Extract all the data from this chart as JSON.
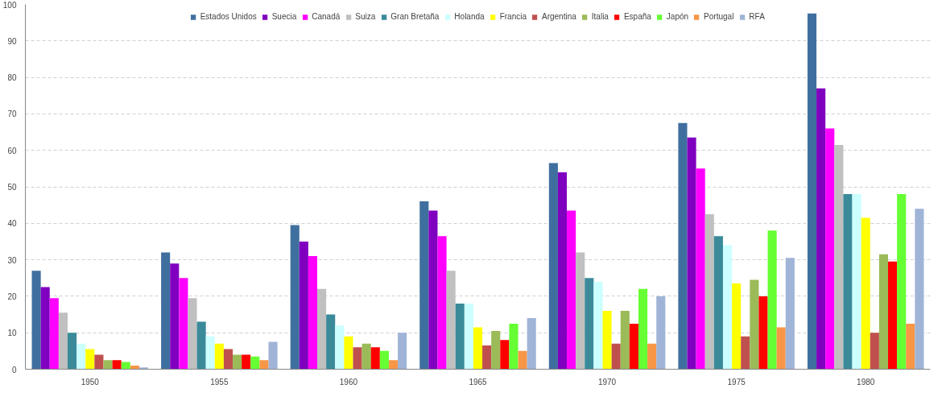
{
  "chart_data": {
    "type": "bar",
    "categories": [
      "1950",
      "1955",
      "1960",
      "1965",
      "1970",
      "1975",
      "1980"
    ],
    "ylim": [
      0,
      100
    ],
    "yticks": [
      0,
      10,
      20,
      30,
      40,
      50,
      60,
      70,
      80,
      90,
      100
    ],
    "grid": "y",
    "legend": "top",
    "series": [
      {
        "name": "Estados Unidos",
        "color": "#3f6f9f",
        "values": [
          27,
          32,
          39.5,
          46,
          56.5,
          67.5,
          97.5
        ]
      },
      {
        "name": "Suecia",
        "color": "#8000c0",
        "values": [
          22.5,
          29,
          35,
          43.5,
          54,
          63.5,
          77
        ]
      },
      {
        "name": "Canadá",
        "color": "#ff00ff",
        "values": [
          19.5,
          25,
          31,
          36.5,
          43.5,
          55,
          66
        ]
      },
      {
        "name": "Suiza",
        "color": "#c0c0c0",
        "values": [
          15.5,
          19.5,
          22,
          27,
          32,
          42.5,
          61.5
        ]
      },
      {
        "name": "Gran Bretaña",
        "color": "#3a8a9a",
        "values": [
          10,
          13,
          15,
          18,
          25,
          36.5,
          48
        ]
      },
      {
        "name": "Holanda",
        "color": "#ccffff",
        "values": [
          7,
          9,
          12,
          18,
          24,
          34,
          48
        ]
      },
      {
        "name": "Francia",
        "color": "#ffff00",
        "values": [
          5.5,
          7,
          9,
          11.5,
          16,
          23.5,
          41.5
        ]
      },
      {
        "name": "Argentina",
        "color": "#c0504d",
        "values": [
          4,
          5.5,
          6,
          6.5,
          7,
          9,
          10
        ]
      },
      {
        "name": "Italia",
        "color": "#9bbb59",
        "values": [
          2.5,
          4,
          7,
          10.5,
          16,
          24.5,
          31.5
        ]
      },
      {
        "name": "España",
        "color": "#ff0000",
        "values": [
          2.5,
          4,
          6,
          8,
          12.5,
          20,
          29.5
        ]
      },
      {
        "name": "Japón",
        "color": "#66ff33",
        "values": [
          2,
          3.5,
          5,
          12.5,
          22,
          38,
          48
        ]
      },
      {
        "name": "Portugal",
        "color": "#f79646",
        "values": [
          1,
          2.5,
          2.5,
          5,
          7,
          11.5,
          12.5
        ]
      },
      {
        "name": "RFA",
        "color": "#a0b4d8",
        "values": [
          0.5,
          7.5,
          10,
          14,
          20,
          30.5,
          44
        ]
      }
    ]
  }
}
